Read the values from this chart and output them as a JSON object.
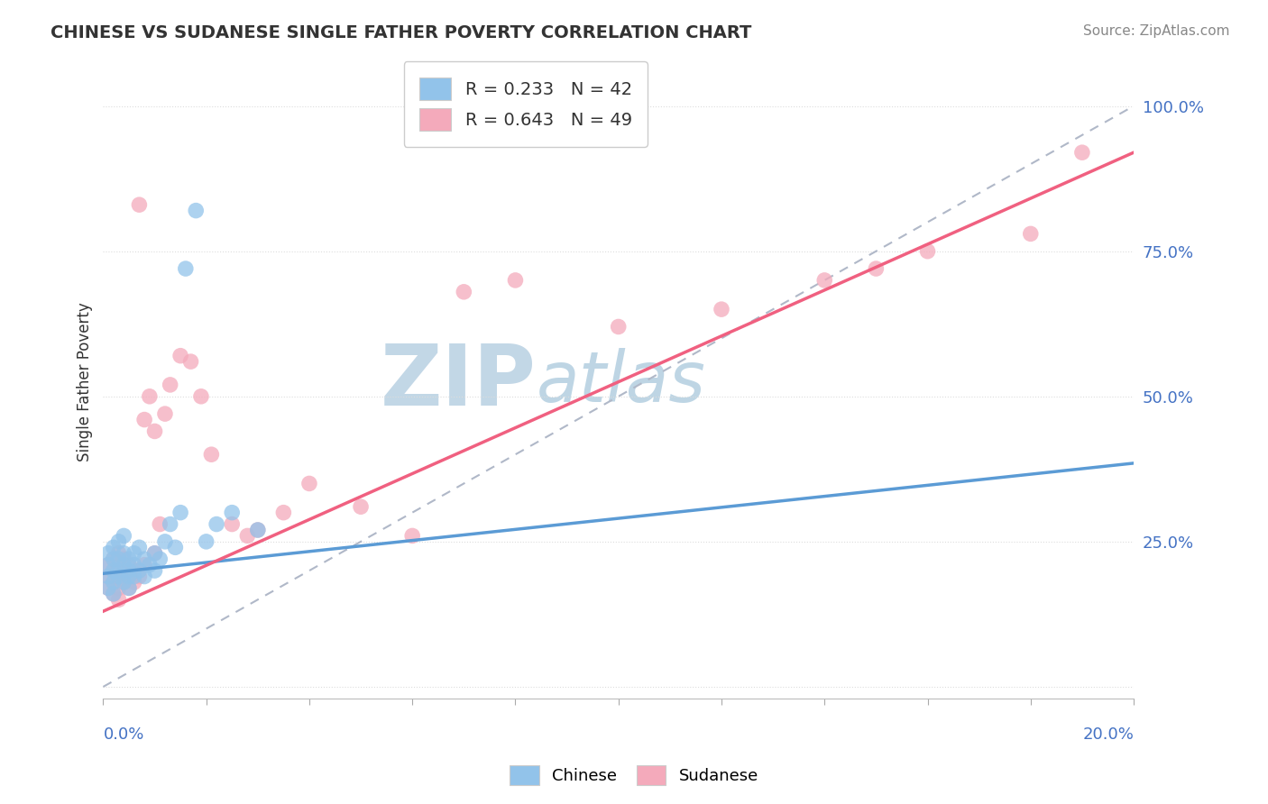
{
  "title": "CHINESE VS SUDANESE SINGLE FATHER POVERTY CORRELATION CHART",
  "source": "Source: ZipAtlas.com",
  "ylabel": "Single Father Poverty",
  "xlim": [
    0.0,
    0.2
  ],
  "ylim": [
    -0.02,
    1.07
  ],
  "chinese_R": 0.233,
  "chinese_N": 42,
  "sudanese_R": 0.643,
  "sudanese_N": 49,
  "chinese_color": "#92C3EA",
  "sudanese_color": "#F4AABB",
  "chinese_line_color": "#5B9BD5",
  "sudanese_line_color": "#F06080",
  "ref_line_color": "#B0B8C8",
  "watermark_zip_color": "#C5D8E8",
  "watermark_atlas_color": "#A8C8E0",
  "background_color": "#FFFFFF",
  "grid_color": "#DDDDDD",
  "chinese_line_x0": 0.0,
  "chinese_line_y0": 0.195,
  "chinese_line_x1": 0.2,
  "chinese_line_y1": 0.385,
  "sudanese_line_x0": 0.0,
  "sudanese_line_y0": 0.13,
  "sudanese_line_x1": 0.2,
  "sudanese_line_y1": 0.92,
  "chinese_x": [
    0.001,
    0.001,
    0.001,
    0.001,
    0.002,
    0.002,
    0.002,
    0.002,
    0.002,
    0.003,
    0.003,
    0.003,
    0.003,
    0.004,
    0.004,
    0.004,
    0.004,
    0.005,
    0.005,
    0.005,
    0.005,
    0.006,
    0.006,
    0.006,
    0.007,
    0.007,
    0.008,
    0.008,
    0.009,
    0.01,
    0.01,
    0.011,
    0.012,
    0.013,
    0.014,
    0.015,
    0.016,
    0.018,
    0.02,
    0.022,
    0.025,
    0.03
  ],
  "chinese_y": [
    0.19,
    0.21,
    0.23,
    0.17,
    0.2,
    0.22,
    0.18,
    0.24,
    0.16,
    0.2,
    0.22,
    0.19,
    0.25,
    0.18,
    0.21,
    0.23,
    0.26,
    0.19,
    0.22,
    0.2,
    0.17,
    0.21,
    0.19,
    0.23,
    0.2,
    0.24,
    0.19,
    0.22,
    0.21,
    0.23,
    0.2,
    0.22,
    0.25,
    0.28,
    0.24,
    0.3,
    0.72,
    0.82,
    0.25,
    0.28,
    0.3,
    0.27
  ],
  "sudanese_x": [
    0.001,
    0.001,
    0.001,
    0.002,
    0.002,
    0.002,
    0.002,
    0.003,
    0.003,
    0.003,
    0.003,
    0.004,
    0.004,
    0.004,
    0.005,
    0.005,
    0.005,
    0.006,
    0.006,
    0.007,
    0.007,
    0.008,
    0.008,
    0.009,
    0.01,
    0.01,
    0.011,
    0.012,
    0.013,
    0.015,
    0.017,
    0.019,
    0.021,
    0.025,
    0.028,
    0.03,
    0.035,
    0.04,
    0.05,
    0.06,
    0.07,
    0.08,
    0.1,
    0.12,
    0.14,
    0.15,
    0.16,
    0.18,
    0.19
  ],
  "sudanese_y": [
    0.17,
    0.19,
    0.21,
    0.16,
    0.18,
    0.2,
    0.22,
    0.15,
    0.17,
    0.19,
    0.23,
    0.18,
    0.2,
    0.22,
    0.17,
    0.19,
    0.21,
    0.18,
    0.2,
    0.19,
    0.83,
    0.21,
    0.46,
    0.5,
    0.23,
    0.44,
    0.28,
    0.47,
    0.52,
    0.57,
    0.56,
    0.5,
    0.4,
    0.28,
    0.26,
    0.27,
    0.3,
    0.35,
    0.31,
    0.26,
    0.68,
    0.7,
    0.62,
    0.65,
    0.7,
    0.72,
    0.75,
    0.78,
    0.92
  ]
}
